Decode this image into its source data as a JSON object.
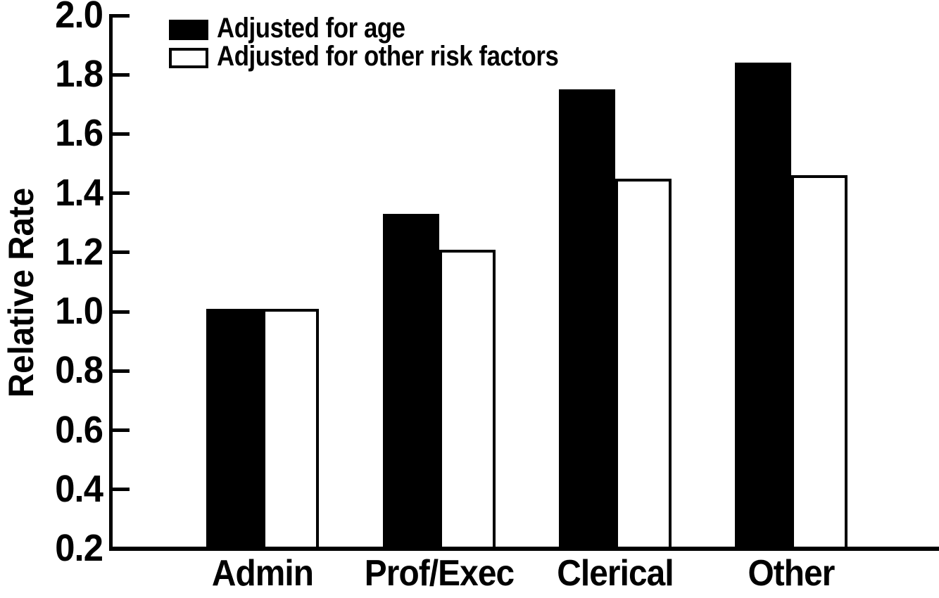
{
  "chart_data": {
    "type": "bar",
    "ylabel": "Relative Rate",
    "xlabel": "",
    "categories": [
      "Admin",
      "Prof/Exec",
      "Clerical",
      "Other"
    ],
    "series": [
      {
        "name": "Adjusted for age",
        "fill": "#000000",
        "edge": "#000000",
        "values": [
          1.01,
          1.33,
          1.75,
          1.84
        ]
      },
      {
        "name": "Adjusted for other risk factors",
        "fill": "#ffffff",
        "edge": "#000000",
        "values": [
          1.01,
          1.21,
          1.45,
          1.46
        ]
      }
    ],
    "ylim": [
      0.2,
      2.0
    ],
    "yticks": [
      {
        "value": 2.0,
        "label": "2.0"
      },
      {
        "value": 1.8,
        "label": "1.8"
      },
      {
        "value": 1.6,
        "label": "1.6"
      },
      {
        "value": 1.4,
        "label": "1.4"
      },
      {
        "value": 1.2,
        "label": "1.2"
      },
      {
        "value": 1.0,
        "label": "1.0"
      },
      {
        "value": 0.8,
        "label": "0.8"
      },
      {
        "value": 0.6,
        "label": "0.6"
      },
      {
        "value": 0.4,
        "label": "0.4"
      },
      {
        "value": 0.2,
        "label": "0.2"
      }
    ],
    "grid": false,
    "legend_position": "top-left",
    "colors": {
      "foreground": "#000000",
      "background": "#ffffff"
    }
  }
}
